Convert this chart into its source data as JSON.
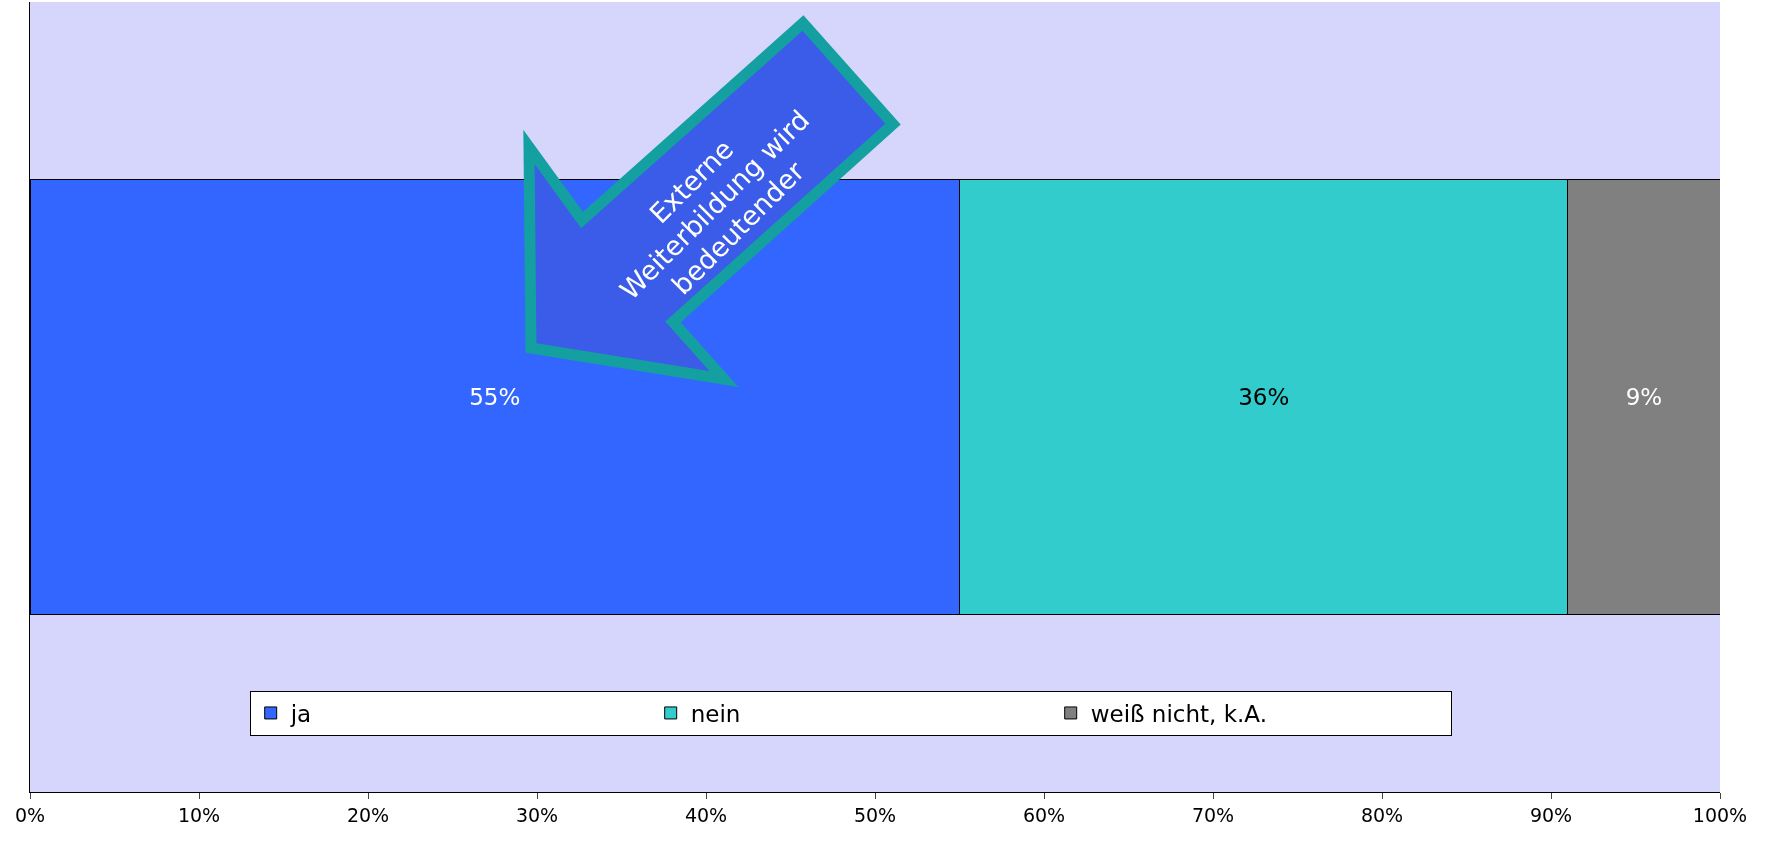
{
  "chart_data": {
    "type": "bar",
    "orientation": "horizontal",
    "stacked": true,
    "categories": [
      null
    ],
    "series": [
      {
        "name": "ja",
        "color": "#3366ff",
        "values": [
          55
        ],
        "value_labels": [
          "55%"
        ]
      },
      {
        "name": "nein",
        "color": "#33cccc",
        "values": [
          36
        ],
        "value_labels": [
          "36%"
        ]
      },
      {
        "name": "weiß nicht, k.A.",
        "color": "#808080",
        "values": [
          9
        ],
        "value_labels": [
          "9%"
        ]
      }
    ],
    "xlim": [
      0,
      100
    ],
    "xticks": [
      {
        "value": 0,
        "label": "0%"
      },
      {
        "value": 10,
        "label": "10%"
      },
      {
        "value": 20,
        "label": "20%"
      },
      {
        "value": 30,
        "label": "30%"
      },
      {
        "value": 40,
        "label": "40%"
      },
      {
        "value": 50,
        "label": "50%"
      },
      {
        "value": 60,
        "label": "60%"
      },
      {
        "value": 70,
        "label": "70%"
      },
      {
        "value": 80,
        "label": "80%"
      },
      {
        "value": 90,
        "label": "90%"
      },
      {
        "value": 100,
        "label": "100%"
      }
    ],
    "legend": "bottom",
    "grid": false,
    "tick_labels": "x",
    "annotations": [
      "Externe Weiterbildung wird bedeutender"
    ]
  }
}
